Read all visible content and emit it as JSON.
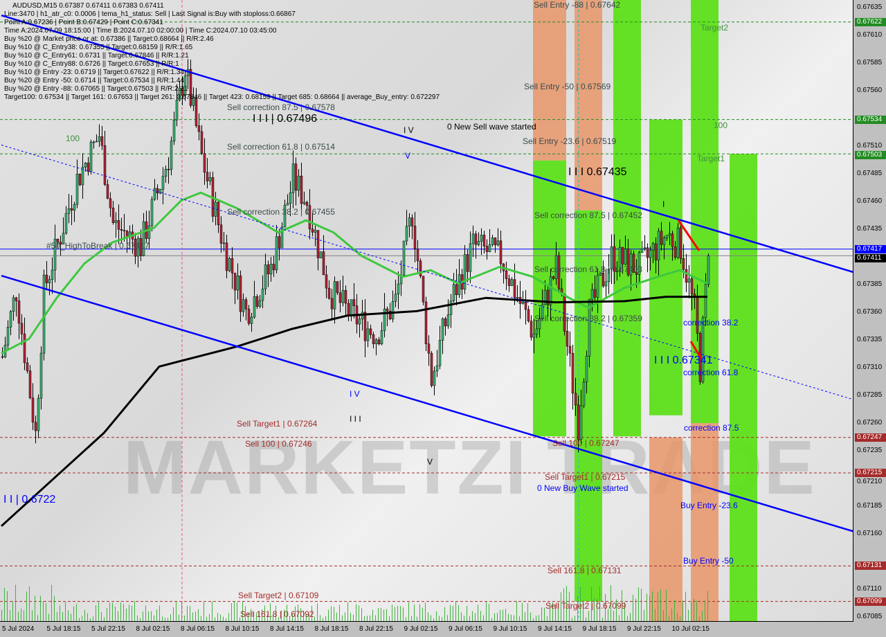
{
  "header": {
    "symbol_line": "AUDUSD,M15  0.67387 0.67411 0.67383 0.67411"
  },
  "info_lines": [
    "Line:3470 | h1_atr_c0: 0.0006 | tema_h1_status: Sell | Last Signal is:Buy with stoploss:0.66867",
    "Point A:0.67236 | Point B:0.67429 | Point C:0.67341",
    "Time A:2024.07.09 18:15:00 | Time B:2024.07.10 02:00:00 | Time C:2024.07.10 03:45:00",
    "Buy %20 @ Market price or at: 0.67386 || Target:0.68664 || R/R:2.46",
    "Buy %10 @ C_Entry38: 0.67355 || Target:0.68159 || R/R:1.65",
    "Buy %10 @ C_Entry61: 0.6731 || Target:0.67846 || R/R:1.21",
    "Buy %10 @ C_Entry88: 0.6726 || Target:0.67653 || R/R:1",
    "Buy %10 @ Entry -23: 0.6719 || Target:0.67622 || R/R:1.34",
    "Buy %20 @ Entry -50: 0.6714 || Target:0.67534 || R/R:1.44",
    "Buy %20 @ Entry -88: 0.67065 || Target:0.67503 || R/R:2.21",
    "Target100: 0.67534 || Target 161: 0.67653 || Target 261: 0.67846 || Target 423: 0.68159 || Target 685: 0.68664 || average_Buy_entry: 0.672297"
  ],
  "watermark": {
    "left": "MARKETZI",
    "right": "TRADE"
  },
  "annotations": [
    "Sell correction 87.5 | 0.67578",
    "I I I | 0.67496",
    "Sell correction 61.8 | 0.67514",
    "Sell correction 38.2 | 0.67455",
    "100",
    "#50_HighToBreak | 0.67417",
    "I V",
    "V",
    "0 New Sell wave started",
    "Sell Entry -88 | 0.67642",
    "Sell Entry -50 | 0.67569",
    "Sell Entry -23.6 | 0.67519",
    "I I I 0.67435",
    "Target2",
    "100",
    "Target1",
    "I",
    "Sell correction 87.5 | 0.67452",
    "Sell correction 61.8 | 0.67403",
    "Sell correction 38.2 | 0.67359",
    "correction 38.2",
    "I I I 0.67341",
    "correction 61.8",
    "correction 87.5",
    "I V",
    "I I I",
    "V",
    "Sell Target1 | 0.67264",
    "Sell 100 | 0.67246",
    "Sell 100 | 0.67247",
    "Sell Target1 | 0.67215",
    "0 New Buy Wave started",
    "Buy Entry -23.6",
    "Buy Entry -50",
    "I I | 0.6722",
    "Sell 161.8 | 0.67131",
    "Sell Target2 | 0.67109",
    "Sell Target2 | 0.67099",
    "Sell 161.8 | 0.67092"
  ],
  "colors": {
    "bull": "#3cb371",
    "bear": "#b22234",
    "trend": "#0000ff",
    "ma_fast": "#3ec83e",
    "ma_slow": "#000000",
    "zone_green": "#5ee01a",
    "zone_orange": "#e8966a",
    "level_green": "#228b22",
    "level_red": "#a52a2a"
  },
  "chart_data": {
    "type": "candlestick",
    "ylim": [
      0.67075,
      0.67645
    ],
    "y_ticks": [
      "0.67635",
      "0.67610",
      "0.67585",
      "0.67560",
      "0.67510",
      "0.67485",
      "0.67460",
      "0.67435",
      "0.67385",
      "0.67360",
      "0.67335",
      "0.67310",
      "0.67285",
      "0.67260",
      "0.67235",
      "0.67210",
      "0.67185",
      "0.67160",
      "0.67110",
      "0.67085"
    ],
    "price_tags": [
      {
        "value": "0.67622",
        "color": "#228b22"
      },
      {
        "value": "0.67534",
        "color": "#228b22"
      },
      {
        "value": "0.67503",
        "color": "#228b22"
      },
      {
        "value": "0.67417",
        "color": "#0000ff"
      },
      {
        "value": "0.67411",
        "color": "#000000"
      },
      {
        "value": "0.67247",
        "color": "#a52a2a"
      },
      {
        "value": "0.67215",
        "color": "#a52a2a"
      },
      {
        "value": "0.67131",
        "color": "#a52a2a"
      },
      {
        "value": "0.67099",
        "color": "#a52a2a"
      }
    ],
    "x_ticks": [
      "5 Jul 2024",
      "5 Jul 18:15",
      "5 Jul 22:15",
      "8 Jul 02:15",
      "8 Jul 06:15",
      "8 Jul 10:15",
      "8 Jul 14:15",
      "8 Jul 18:15",
      "8 Jul 22:15",
      "9 Jul 02:15",
      "9 Jul 06:15",
      "9 Jul 10:15",
      "9 Jul 14:15",
      "9 Jul 18:15",
      "9 Jul 22:15",
      "10 Jul 02:15"
    ],
    "close_path": [
      [
        0,
        0.6732
      ],
      [
        5,
        0.6738
      ],
      [
        12,
        0.6725
      ],
      [
        15,
        0.6738
      ],
      [
        27,
        0.6748
      ],
      [
        35,
        0.6752
      ],
      [
        40,
        0.6744
      ],
      [
        50,
        0.6742
      ],
      [
        60,
        0.675
      ],
      [
        66,
        0.6758
      ],
      [
        72,
        0.675
      ],
      [
        80,
        0.6742
      ],
      [
        88,
        0.6736
      ],
      [
        97,
        0.674
      ],
      [
        105,
        0.6748
      ],
      [
        110,
        0.6746
      ],
      [
        118,
        0.6738
      ],
      [
        125,
        0.6736
      ],
      [
        135,
        0.6734
      ],
      [
        142,
        0.6737
      ],
      [
        148,
        0.6745
      ],
      [
        155,
        0.673
      ],
      [
        162,
        0.6737
      ],
      [
        170,
        0.6742
      ],
      [
        180,
        0.6741
      ],
      [
        185,
        0.6738
      ],
      [
        192,
        0.6734
      ],
      [
        200,
        0.674
      ],
      [
        208,
        0.6726
      ],
      [
        212,
        0.6736
      ],
      [
        220,
        0.6741
      ],
      [
        230,
        0.674
      ],
      [
        240,
        0.6743
      ],
      [
        245,
        0.6742
      ],
      [
        250,
        0.6736
      ],
      [
        252,
        0.6731
      ],
      [
        255,
        0.67411
      ]
    ],
    "ma_fast": [
      [
        0,
        0.67323
      ],
      [
        10,
        0.67336
      ],
      [
        20,
        0.67373
      ],
      [
        30,
        0.67404
      ],
      [
        40,
        0.67423
      ],
      [
        55,
        0.67436
      ],
      [
        65,
        0.67461
      ],
      [
        72,
        0.67468
      ],
      [
        85,
        0.67454
      ],
      [
        100,
        0.67432
      ],
      [
        110,
        0.67443
      ],
      [
        120,
        0.67432
      ],
      [
        130,
        0.67411
      ],
      [
        145,
        0.67392
      ],
      [
        155,
        0.67398
      ],
      [
        165,
        0.67386
      ],
      [
        180,
        0.67401
      ],
      [
        192,
        0.67392
      ],
      [
        205,
        0.67373
      ],
      [
        212,
        0.67364
      ],
      [
        225,
        0.67382
      ],
      [
        237,
        0.67392
      ],
      [
        245,
        0.67398
      ],
      [
        255,
        0.67386
      ]
    ],
    "ma_slow": [
      [
        0,
        0.67167
      ],
      [
        37,
        0.67251
      ],
      [
        57,
        0.67311
      ],
      [
        85,
        0.67329
      ],
      [
        105,
        0.67345
      ],
      [
        125,
        0.67357
      ],
      [
        150,
        0.67361
      ],
      [
        175,
        0.67373
      ],
      [
        200,
        0.67369
      ],
      [
        225,
        0.6737
      ],
      [
        240,
        0.67374
      ],
      [
        255,
        0.67374
      ]
    ],
    "trendlines": [
      [
        [
          0,
          0.67628
        ],
        [
          308,
          0.67396
        ]
      ],
      [
        [
          0,
          0.67393
        ],
        [
          308,
          0.67162
        ]
      ],
      [
        [
          0,
          0.67511
        ],
        [
          308,
          0.67281
        ]
      ]
    ],
    "levels": [
      {
        "price": 0.67622,
        "style": "green-dash"
      },
      {
        "price": 0.67534,
        "style": "green-dash"
      },
      {
        "price": 0.67503,
        "style": "green-dash"
      },
      {
        "price": 0.67417,
        "style": "blue-solid"
      },
      {
        "price": 0.67411,
        "style": "gray-solid"
      },
      {
        "price": 0.67247,
        "style": "red-dash"
      },
      {
        "price": 0.67215,
        "style": "red-dash"
      },
      {
        "price": 0.67131,
        "style": "red-dash"
      },
      {
        "price": 0.67099,
        "style": "red-dash"
      }
    ],
    "zones": [
      {
        "bars": [
          192,
          204
        ],
        "from": 0.67645,
        "to": 0.67497,
        "color": "orange"
      },
      {
        "bars": [
          192,
          204
        ],
        "from": 0.67497,
        "to": 0.67248,
        "color": "green"
      },
      {
        "bars": [
          207,
          217
        ],
        "from": 0.67645,
        "to": 0.67452,
        "color": "orange"
      },
      {
        "bars": [
          207,
          217
        ],
        "from": 0.67452,
        "to": 0.67099,
        "color": "green"
      },
      {
        "bars": [
          221,
          231
        ],
        "from": 0.67645,
        "to": 0.67248,
        "color": "green"
      },
      {
        "bars": [
          234,
          246
        ],
        "from": 0.67534,
        "to": 0.67267,
        "color": "green"
      },
      {
        "bars": [
          234,
          246
        ],
        "from": 0.67247,
        "to": 0.67075,
        "color": "orange"
      },
      {
        "bars": [
          249,
          259
        ],
        "from": 0.67645,
        "to": 0.6726,
        "color": "green"
      },
      {
        "bars": [
          249,
          259
        ],
        "from": 0.6726,
        "to": 0.67075,
        "color": "orange"
      },
      {
        "bars": [
          263,
          273
        ],
        "from": 0.67503,
        "to": 0.67075,
        "color": "green"
      }
    ]
  }
}
